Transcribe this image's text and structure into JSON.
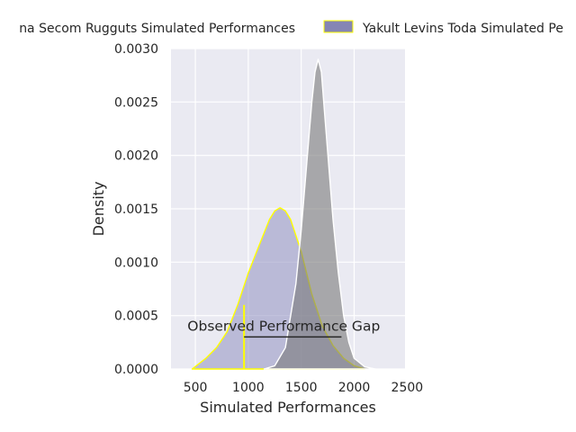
{
  "chart_data": {
    "type": "area",
    "title": "",
    "xlabel": "Simulated Performances",
    "ylabel": "Density",
    "xlim": [
      270,
      2480
    ],
    "ylim": [
      0,
      0.003
    ],
    "x_ticks": [
      500,
      1000,
      1500,
      2000,
      2500
    ],
    "y_ticks": [
      0.0,
      0.0005,
      0.001,
      0.0015,
      0.002,
      0.0025,
      0.003
    ],
    "x_tick_labels": [
      "500",
      "1000",
      "1500",
      "2000",
      "2500"
    ],
    "y_tick_labels": [
      "0.0000",
      "0.0005",
      "0.0010",
      "0.0015",
      "0.0020",
      "0.0025",
      "0.0030"
    ],
    "grid": true,
    "legend_placement": "top-center",
    "series": [
      {
        "name": "Chiba Secom Rugguts Simulated Performances",
        "legend_label": "na Secom Rugguts Simulated Performances",
        "fill": "#9a9ac4",
        "edge": "#ffff00",
        "x": [
          470,
          600,
          700,
          800,
          900,
          1000,
          1100,
          1200,
          1250,
          1300,
          1350,
          1400,
          1500,
          1600,
          1700,
          1800,
          1900,
          2000,
          2100
        ],
        "y": [
          0.0,
          0.0001,
          0.0002,
          0.00035,
          0.0006,
          0.0009,
          0.00115,
          0.0014,
          0.00148,
          0.00151,
          0.00148,
          0.0014,
          0.0011,
          0.0007,
          0.0004,
          0.00022,
          0.0001,
          3e-05,
          0.0
        ]
      },
      {
        "name": "Yakult Levins Toda Simulated Performances",
        "legend_label": "Yakult Levins Toda Simulated Pe",
        "fill": "#7a7a7a",
        "edge": "#ffffff",
        "x": [
          1150,
          1250,
          1350,
          1450,
          1500,
          1550,
          1600,
          1630,
          1660,
          1690,
          1720,
          1760,
          1800,
          1850,
          1900,
          1950,
          2000,
          2100,
          2200
        ],
        "y": [
          0.0,
          3e-05,
          0.0002,
          0.0008,
          0.0013,
          0.0019,
          0.0025,
          0.00278,
          0.0029,
          0.00278,
          0.0024,
          0.0019,
          0.0014,
          0.0009,
          0.0005,
          0.00025,
          0.0001,
          2e-05,
          0.0
        ]
      }
    ],
    "annotations": {
      "observed_marker_x": 960,
      "observed_marker_y": 0.0006,
      "gap_line_y": 0.0003,
      "gap_x_start": 960,
      "gap_x_end": 1880,
      "gap_text": "Observed Performance Gap",
      "gap_text_x": 1335,
      "gap_text_y": 0.00036
    }
  }
}
